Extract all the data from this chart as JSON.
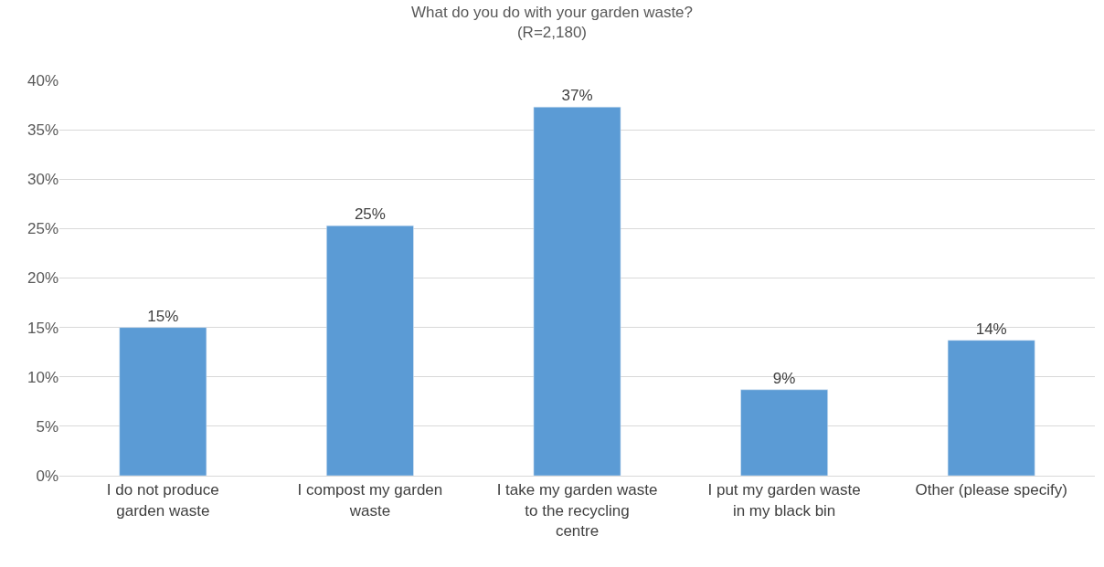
{
  "chart_data": {
    "type": "bar",
    "title": "What do you do with your garden waste?",
    "subtitle": "(R=2,180)",
    "categories": [
      "I do not produce garden waste",
      "I compost my garden waste",
      "I take my garden waste to the recycling centre",
      "I put my garden waste in my black bin",
      "Other (please specify)"
    ],
    "values": [
      15.0,
      25.3,
      37.3,
      8.7,
      13.7
    ],
    "value_labels": [
      "15%",
      "25%",
      "37%",
      "9%",
      "14%"
    ],
    "color": "#5b9bd5",
    "ylim": [
      0,
      40
    ],
    "yticks": [
      {
        "value": 0,
        "label": "0%"
      },
      {
        "value": 5,
        "label": "5%"
      },
      {
        "value": 10,
        "label": "10%"
      },
      {
        "value": 15,
        "label": "15%"
      },
      {
        "value": 20,
        "label": "20%"
      },
      {
        "value": 25,
        "label": "25%"
      },
      {
        "value": 30,
        "label": "30%"
      },
      {
        "value": 35,
        "label": "35%"
      },
      {
        "value": 40,
        "label": "40%"
      }
    ],
    "grid": "y",
    "legend": false
  }
}
